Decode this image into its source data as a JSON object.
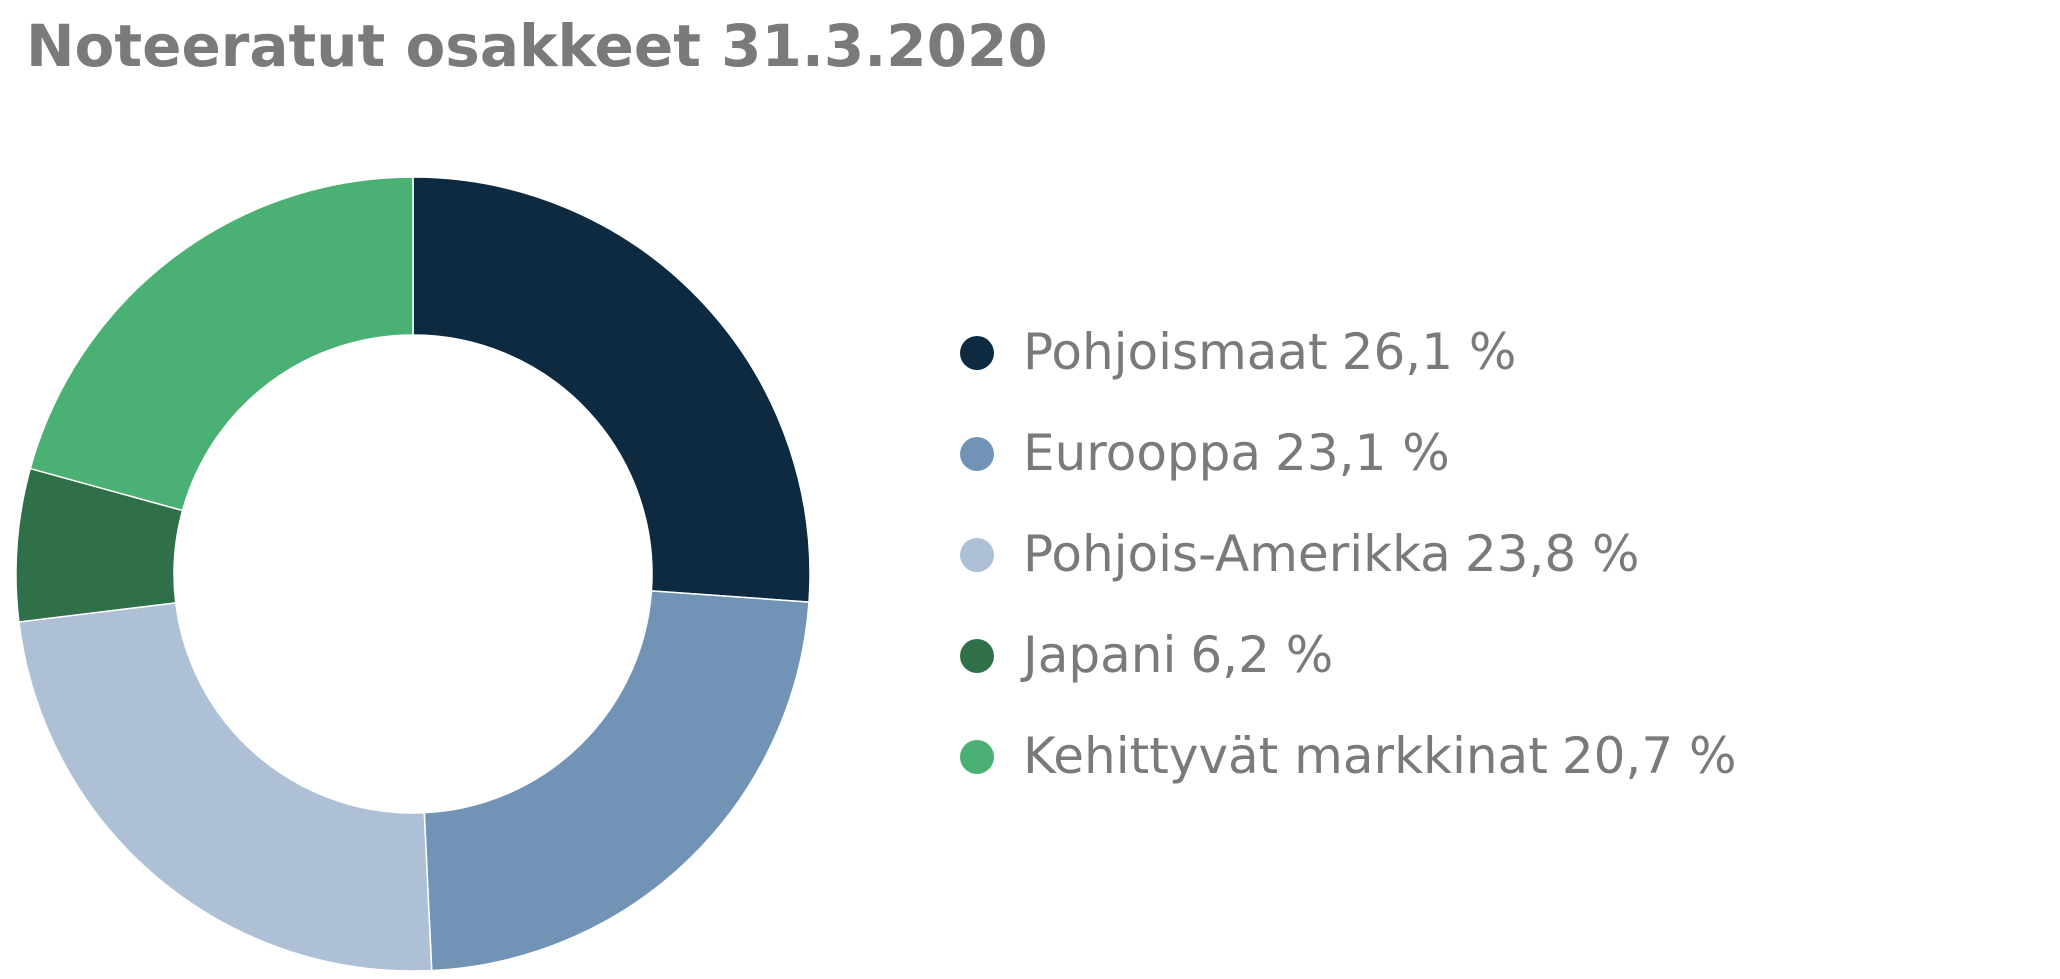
{
  "chart_data": {
    "type": "donut",
    "title": "Noteeratut osakkeet 31.3.2020",
    "categories": [
      "Pohjoismaat",
      "Eurooppa",
      "Pohjois-Amerikka",
      "Japani",
      "Kehittyvät markkinat"
    ],
    "values": [
      26.1,
      23.1,
      23.8,
      6.2,
      20.7
    ],
    "value_labels": [
      "26,1 %",
      "23,1 %",
      "23,8 %",
      "6,2 %",
      "20,7 %"
    ],
    "colors": [
      "#0d2a40",
      "#7193b5",
      "#adc0d5",
      "#2f7048",
      "#4bb073"
    ],
    "legend": "right"
  }
}
